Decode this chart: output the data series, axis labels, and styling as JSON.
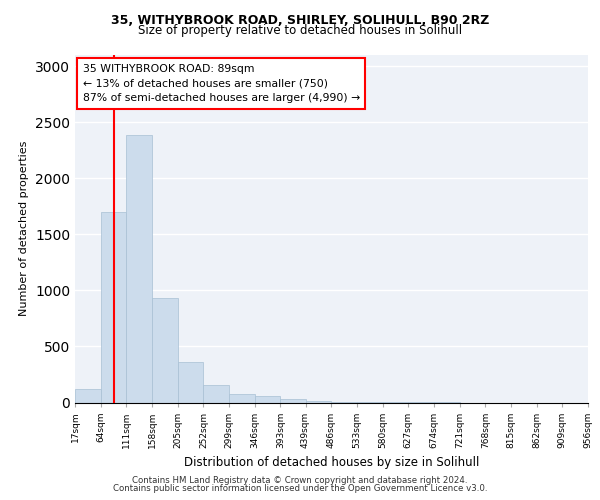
{
  "title1": "35, WITHYBROOK ROAD, SHIRLEY, SOLIHULL, B90 2RZ",
  "title2": "Size of property relative to detached houses in Solihull",
  "xlabel": "Distribution of detached houses by size in Solihull",
  "ylabel": "Number of detached properties",
  "bar_edges": [
    17,
    64,
    111,
    158,
    205,
    252,
    299,
    346,
    393,
    439,
    486,
    533,
    580,
    627,
    674,
    721,
    768,
    815,
    862,
    909,
    956
  ],
  "bar_values": [
    120,
    1700,
    2390,
    930,
    360,
    155,
    80,
    55,
    35,
    10,
    5,
    3,
    5,
    3,
    1,
    0,
    0,
    0,
    0,
    0
  ],
  "bar_color": "#ccdcec",
  "bar_edgecolor": "#a8c0d4",
  "red_line_x": 89,
  "ylim": [
    0,
    3100
  ],
  "yticks": [
    0,
    500,
    1000,
    1500,
    2000,
    2500,
    3000
  ],
  "annotation_text": "35 WITHYBROOK ROAD: 89sqm\n← 13% of detached houses are smaller (750)\n87% of semi-detached houses are larger (4,990) →",
  "footer1": "Contains HM Land Registry data © Crown copyright and database right 2024.",
  "footer2": "Contains public sector information licensed under the Open Government Licence v3.0.",
  "bg_color": "#ffffff",
  "plot_bg_color": "#eef2f8"
}
